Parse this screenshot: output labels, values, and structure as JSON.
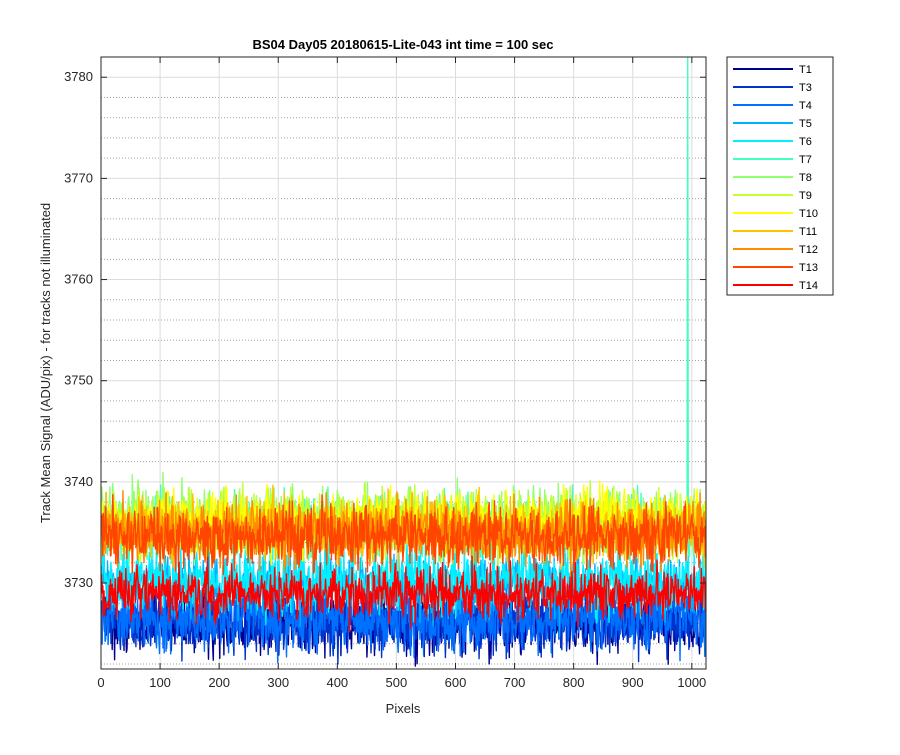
{
  "chart_data": {
    "type": "line",
    "title": "BS04 Day05 20180615-Lite-043 int time = 100 sec",
    "xlabel": "Pixels",
    "ylabel": "Track Mean Signal (ADU/pix) - for tracks not illuminated",
    "xlim": [
      0,
      1024
    ],
    "ylim": [
      3721.5,
      3782
    ],
    "x_ticks": [
      0,
      100,
      200,
      300,
      400,
      500,
      600,
      700,
      800,
      900,
      1000
    ],
    "y_ticks": [
      3730,
      3740,
      3750,
      3760,
      3770,
      3780
    ],
    "grid": "major and minor",
    "legend_position": "outside-top-right",
    "x_sampling": "every pixel 0-1024",
    "series": [
      {
        "name": "T1",
        "color": "#00008f",
        "mean": 3726.0,
        "noise": 1.6
      },
      {
        "name": "T3",
        "color": "#0033cc",
        "mean": 3726.3,
        "noise": 1.6
      },
      {
        "name": "T4",
        "color": "#0070ff",
        "mean": 3726.5,
        "noise": 1.6
      },
      {
        "name": "T5",
        "color": "#00b0ff",
        "mean": 3729.8,
        "noise": 1.6
      },
      {
        "name": "T6",
        "color": "#00f0ff",
        "mean": 3730.2,
        "noise": 1.6
      },
      {
        "name": "T7",
        "color": "#40ffc0",
        "mean": 3735.5,
        "noise": 1.6,
        "spike": {
          "x": 993,
          "y": 3782
        }
      },
      {
        "name": "T8",
        "color": "#90ff70",
        "mean": 3736.2,
        "noise": 1.6
      },
      {
        "name": "T9",
        "color": "#c0ff30",
        "mean": 3736.0,
        "noise": 1.6
      },
      {
        "name": "T10",
        "color": "#ffff00",
        "mean": 3736.0,
        "noise": 1.5
      },
      {
        "name": "T11",
        "color": "#ffc000",
        "mean": 3735.3,
        "noise": 1.5
      },
      {
        "name": "T12",
        "color": "#ff8c00",
        "mean": 3735.0,
        "noise": 1.5
      },
      {
        "name": "T13",
        "color": "#ff4500",
        "mean": 3734.6,
        "noise": 1.5
      },
      {
        "name": "T14",
        "color": "#ff0000",
        "mean": 3729.0,
        "noise": 1.3
      }
    ]
  }
}
